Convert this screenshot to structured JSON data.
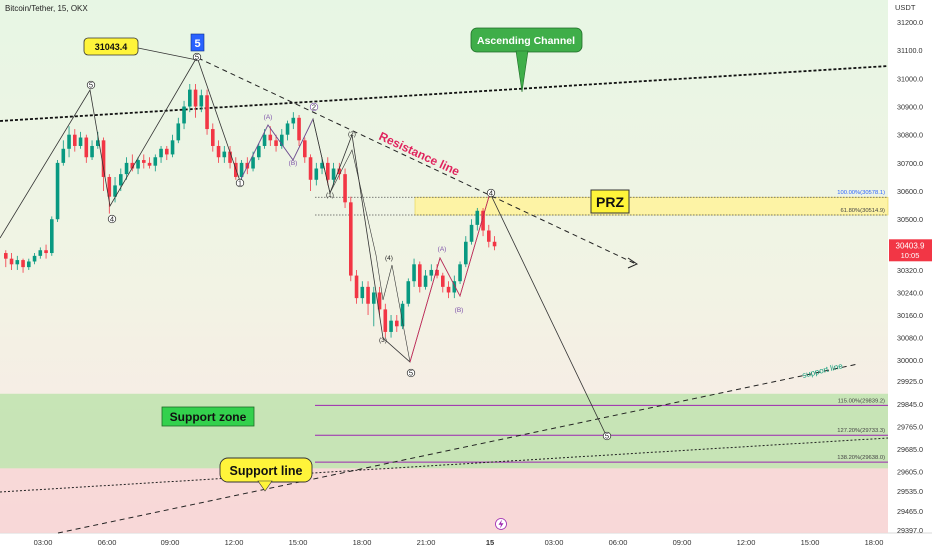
{
  "header": {
    "title": "Bitcoin/Tether, 15, OKX",
    "currency": "USDT"
  },
  "colors": {
    "up": "#089981",
    "down": "#f23645",
    "support_zone": "#b7e2a6",
    "prz_zone": "#fdf3a5",
    "purple_level": "#9c27b0",
    "resistance_text": "#e0245e",
    "price_tag": "#f23645",
    "callout_yellow": "#fff43a",
    "callout_green": "#3fae49"
  },
  "price_tag": {
    "price": "30403.9",
    "countdown": "10:05"
  },
  "chart_data": {
    "type": "candlestick",
    "title": "Bitcoin/Tether, 15, OKX",
    "y_axis": {
      "label": "USDT",
      "ticks": [
        "31200.0",
        "31100.0",
        "31000.0",
        "30900.0",
        "30800.0",
        "30700.0",
        "30600.0",
        "30500.0",
        "30400.0",
        "30320.0",
        "30240.0",
        "30160.0",
        "30080.0",
        "30000.0",
        "29925.0",
        "29845.0",
        "29765.0",
        "29685.0",
        "29605.0",
        "29535.0",
        "29465.0",
        "29397.0"
      ],
      "range": [
        29380,
        31260
      ]
    },
    "x_axis": {
      "ticks": [
        "03:00",
        "06:00",
        "09:00",
        "12:00",
        "15:00",
        "18:00",
        "21:00",
        "15",
        "03:00",
        "06:00",
        "09:00",
        "12:00",
        "15:00",
        "18:00"
      ]
    },
    "candles": [
      [
        30380,
        30360,
        30390,
        30330
      ],
      [
        30360,
        30340,
        30380,
        30320
      ],
      [
        30340,
        30355,
        30370,
        30320
      ],
      [
        30355,
        30330,
        30360,
        30310
      ],
      [
        30330,
        30350,
        30360,
        30320
      ],
      [
        30350,
        30370,
        30380,
        30340
      ],
      [
        30370,
        30390,
        30400,
        30360
      ],
      [
        30390,
        30380,
        30410,
        30360
      ],
      [
        30380,
        30500,
        30510,
        30370
      ],
      [
        30500,
        30700,
        30710,
        30490
      ],
      [
        30700,
        30750,
        30780,
        30690
      ],
      [
        30750,
        30800,
        30830,
        30720
      ],
      [
        30800,
        30760,
        30820,
        30740
      ],
      [
        30760,
        30790,
        30810,
        30750
      ],
      [
        30790,
        30720,
        30800,
        30700
      ],
      [
        30720,
        30760,
        30780,
        30710
      ],
      [
        30760,
        30780,
        30810,
        30750
      ],
      [
        30780,
        30650,
        30790,
        30600
      ],
      [
        30650,
        30580,
        30660,
        30520
      ],
      [
        30580,
        30620,
        30650,
        30560
      ],
      [
        30620,
        30660,
        30680,
        30600
      ],
      [
        30660,
        30700,
        30720,
        30640
      ],
      [
        30700,
        30680,
        30730,
        30670
      ],
      [
        30680,
        30710,
        30720,
        30660
      ],
      [
        30710,
        30700,
        30730,
        30680
      ],
      [
        30700,
        30690,
        30720,
        30680
      ],
      [
        30690,
        30720,
        30730,
        30670
      ],
      [
        30720,
        30750,
        30760,
        30700
      ],
      [
        30750,
        30730,
        30760,
        30710
      ],
      [
        30730,
        30780,
        30800,
        30720
      ],
      [
        30780,
        30840,
        30860,
        30770
      ],
      [
        30840,
        30900,
        30920,
        30820
      ],
      [
        30900,
        30960,
        30980,
        30880
      ],
      [
        30960,
        30900,
        30980,
        30860
      ],
      [
        30900,
        30940,
        30960,
        30880
      ],
      [
        30940,
        30820,
        30960,
        30800
      ],
      [
        30820,
        30760,
        30840,
        30740
      ],
      [
        30760,
        30720,
        30780,
        30700
      ],
      [
        30720,
        30740,
        30760,
        30700
      ],
      [
        30740,
        30700,
        30760,
        30680
      ],
      [
        30700,
        30650,
        30720,
        30640
      ],
      [
        30650,
        30700,
        30710,
        30640
      ],
      [
        30700,
        30680,
        30720,
        30660
      ],
      [
        30680,
        30720,
        30740,
        30670
      ],
      [
        30720,
        30760,
        30770,
        30710
      ],
      [
        30760,
        30800,
        30820,
        30750
      ],
      [
        30800,
        30780,
        30830,
        30760
      ],
      [
        30780,
        30760,
        30800,
        30740
      ],
      [
        30760,
        30800,
        30820,
        30750
      ],
      [
        30800,
        30840,
        30850,
        30780
      ],
      [
        30840,
        30860,
        30880,
        30820
      ],
      [
        30860,
        30780,
        30870,
        30760
      ],
      [
        30780,
        30720,
        30790,
        30700
      ],
      [
        30720,
        30640,
        30730,
        30600
      ],
      [
        30640,
        30680,
        30700,
        30620
      ],
      [
        30680,
        30700,
        30720,
        30660
      ],
      [
        30700,
        30640,
        30720,
        30620
      ],
      [
        30640,
        30680,
        30700,
        30620
      ],
      [
        30680,
        30660,
        30700,
        30640
      ],
      [
        30660,
        30560,
        30680,
        30540
      ],
      [
        30560,
        30300,
        30580,
        30280
      ],
      [
        30300,
        30220,
        30320,
        30200
      ],
      [
        30220,
        30260,
        30280,
        30200
      ],
      [
        30260,
        30200,
        30280,
        30160
      ],
      [
        30200,
        30240,
        30260,
        30120
      ],
      [
        30240,
        30180,
        30260,
        30160
      ],
      [
        30180,
        30100,
        30200,
        30080
      ],
      [
        30100,
        30140,
        30160,
        30080
      ],
      [
        30140,
        30120,
        30160,
        30100
      ],
      [
        30120,
        30200,
        30210,
        30110
      ],
      [
        30200,
        30280,
        30290,
        30190
      ],
      [
        30280,
        30340,
        30360,
        30260
      ],
      [
        30340,
        30260,
        30350,
        30240
      ],
      [
        30260,
        30300,
        30320,
        30250
      ],
      [
        30300,
        30320,
        30340,
        30280
      ],
      [
        30320,
        30300,
        30340,
        30290
      ],
      [
        30300,
        30260,
        30310,
        30240
      ],
      [
        30260,
        30240,
        30280,
        30220
      ],
      [
        30240,
        30280,
        30300,
        30220
      ],
      [
        30280,
        30340,
        30350,
        30270
      ],
      [
        30340,
        30420,
        30440,
        30330
      ],
      [
        30420,
        30480,
        30500,
        30410
      ],
      [
        30480,
        30530,
        30540,
        30460
      ],
      [
        30530,
        30460,
        30540,
        30440
      ],
      [
        30460,
        30420,
        30480,
        30400
      ],
      [
        30420,
        30403.9,
        30440,
        30390
      ]
    ],
    "annotations": {
      "swing_high_label": "31043.4",
      "wave_5_box": "5",
      "ascending_channel_label": "Ascending Channel",
      "resistance_label": "Resistance line",
      "prz_label": "PRZ",
      "support_zone_label": "Support zone",
      "support_line_callout": "Support line",
      "support_line_tag": "support line",
      "wave_labels": [
        "5",
        "4",
        "5",
        "1",
        "(A)",
        "(B)",
        "2",
        "(1)",
        "(2)",
        "(3)",
        "(4)",
        "5",
        "(A)",
        "(B)",
        "4",
        "5"
      ]
    },
    "fib_levels": [
      {
        "label": "100.00%(30578.1)",
        "price": 30578.1
      },
      {
        "label": "61.80%(30514.9)",
        "price": 30514.9
      },
      {
        "label": "115.00%(29839.2)",
        "price": 29839.2
      },
      {
        "label": "127.20%(29733.3)",
        "price": 29733.3
      },
      {
        "label": "138.20%(29638.0)",
        "price": 29638.0
      }
    ],
    "zones": {
      "prz": [
        30514.9,
        30578.1
      ],
      "support": [
        29605,
        29845
      ]
    },
    "grid": false
  },
  "footer": {
    "lightning_icon": "lightning-icon"
  }
}
